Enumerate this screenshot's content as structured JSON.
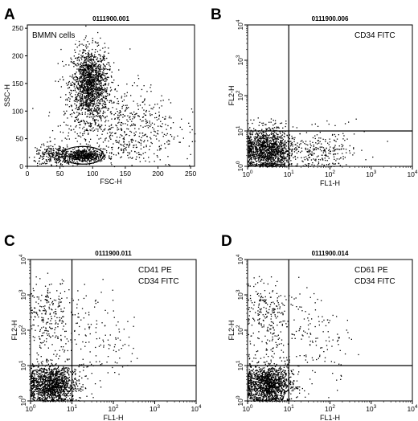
{
  "chart_data": [
    {
      "type": "scatter",
      "panel_label": "A",
      "title": "0111900.001",
      "xlabel": "FSC-H",
      "ylabel": "SSC-H",
      "xscale": "linear",
      "yscale": "linear",
      "xlim": [
        0,
        256
      ],
      "ylim": [
        0,
        256
      ],
      "xticks": [
        "0",
        "50",
        "100",
        "150",
        "200",
        "250"
      ],
      "yticks": [
        "0",
        "50",
        "100",
        "150",
        "200",
        "250"
      ],
      "annotations": [
        "BMMN cells"
      ],
      "gate": {
        "shape": "ellipse",
        "x_center": 85,
        "y_center": 20,
        "x_radius": 32,
        "y_radius": 16
      },
      "populations": [
        {
          "x_center": 95,
          "y_center": 150,
          "x_sd": 14,
          "y_sd": 32,
          "n": 1500
        },
        {
          "x_center": 85,
          "y_center": 20,
          "x_sd": 15,
          "y_sd": 6,
          "n": 550
        },
        {
          "x_center": 140,
          "y_center": 70,
          "x_sd": 45,
          "y_sd": 40,
          "n": 700
        },
        {
          "x_center": 40,
          "y_center": 20,
          "x_sd": 15,
          "y_sd": 10,
          "n": 250
        }
      ]
    },
    {
      "type": "scatter",
      "panel_label": "B",
      "title": "0111900.006",
      "xlabel": "FL1-H",
      "ylabel": "FL2-H",
      "xscale": "log",
      "yscale": "log",
      "xlim": [
        1,
        10000
      ],
      "ylim": [
        1,
        10000
      ],
      "annotations": [
        "CD34 FITC"
      ],
      "quadrant": {
        "x": 10,
        "y": 10
      },
      "populations": [
        {
          "x_center": 3,
          "y_center": 3,
          "x_sd": 0.25,
          "y_sd": 0.25,
          "n": 1400
        },
        {
          "x_center": 60,
          "y_center": 3,
          "x_sd": 0.35,
          "y_sd": 0.25,
          "n": 250
        }
      ]
    },
    {
      "type": "scatter",
      "panel_label": "C",
      "title": "0111900.011",
      "xlabel": "FL1-H",
      "ylabel": "FL2-H",
      "xscale": "log",
      "yscale": "log",
      "xlim": [
        1,
        10000
      ],
      "ylim": [
        1,
        10000
      ],
      "annotations": [
        "CD41 PE",
        "CD34 FITC"
      ],
      "quadrant": {
        "x": 10,
        "y": 10
      },
      "populations": [
        {
          "x_center": 3,
          "y_center": 3,
          "x_sd": 0.25,
          "y_sd": 0.22,
          "n": 1400
        },
        {
          "x_center": 3,
          "y_center": 500,
          "x_sd": 0.25,
          "y_sd": 0.3,
          "n": 160
        },
        {
          "x_center": 3,
          "y_center": 60,
          "x_sd": 0.25,
          "y_sd": 0.4,
          "n": 100
        },
        {
          "x_center": 40,
          "y_center": 50,
          "x_sd": 0.4,
          "y_sd": 0.5,
          "n": 140
        }
      ]
    },
    {
      "type": "scatter",
      "panel_label": "D",
      "title": "0111900.014",
      "xlabel": "FL1-H",
      "ylabel": "FL2-H",
      "xscale": "log",
      "yscale": "log",
      "xlim": [
        1,
        10000
      ],
      "ylim": [
        1,
        10000
      ],
      "annotations": [
        "CD61 PE",
        "CD34 FITC"
      ],
      "quadrant": {
        "x": 10,
        "y": 10
      },
      "populations": [
        {
          "x_center": 3,
          "y_center": 3,
          "x_sd": 0.25,
          "y_sd": 0.22,
          "n": 1400
        },
        {
          "x_center": 3,
          "y_center": 500,
          "x_sd": 0.25,
          "y_sd": 0.3,
          "n": 160
        },
        {
          "x_center": 3,
          "y_center": 60,
          "x_sd": 0.25,
          "y_sd": 0.4,
          "n": 100
        },
        {
          "x_center": 40,
          "y_center": 50,
          "x_sd": 0.4,
          "y_sd": 0.5,
          "n": 140
        }
      ]
    }
  ]
}
